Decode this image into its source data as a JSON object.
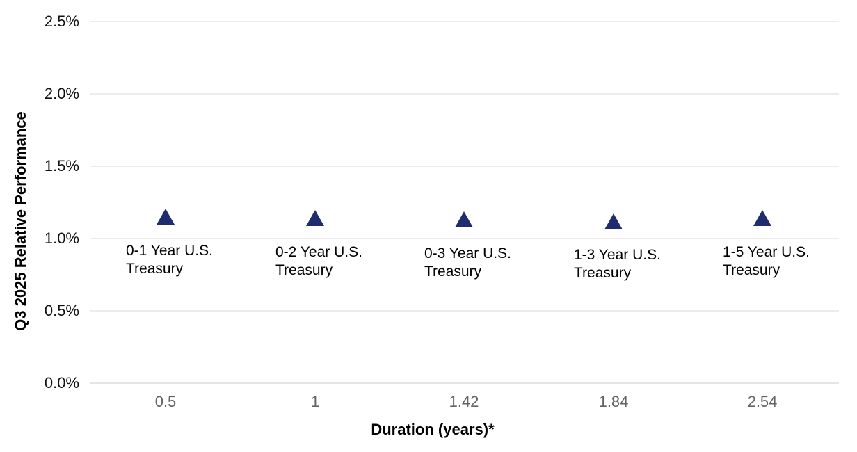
{
  "chart_data": {
    "type": "scatter",
    "title": "",
    "xlabel": "Duration (years)*",
    "ylabel": "Q3 2025 Relative Performance",
    "x_axis_type": "categorical",
    "x_tick_labels": [
      "0.5",
      "1",
      "1.42",
      "1.84",
      "2.54"
    ],
    "y_ticks": [
      {
        "label": "0.0%",
        "value": 0.0
      },
      {
        "label": "0.5%",
        "value": 0.5
      },
      {
        "label": "1.0%",
        "value": 1.0
      },
      {
        "label": "1.5%",
        "value": 1.5
      },
      {
        "label": "2.0%",
        "value": 2.0
      },
      {
        "label": "2.5%",
        "value": 2.5
      }
    ],
    "ylim": [
      0,
      2.5
    ],
    "grid": "horizontal",
    "legend": "none",
    "marker": "triangle-up",
    "colors": {
      "marker": "#1F2D6E",
      "gridline": "#ECECEC",
      "axis_line": "#E4E4E4",
      "x_tick_text": "#636363",
      "y_tick_text": "#111111",
      "label_text": "#000000"
    },
    "series": [
      {
        "name": "",
        "points": [
          {
            "duration": "0.5",
            "value_pct": 1.15,
            "label_lines": [
              "0-1 Year U.S.",
              "Treasury"
            ],
            "label": "0-1 Year U.S. Treasury"
          },
          {
            "duration": "1",
            "value_pct": 1.14,
            "label_lines": [
              "0-2 Year U.S.",
              "Treasury"
            ],
            "label": "0-2 Year U.S. Treasury"
          },
          {
            "duration": "1.42",
            "value_pct": 1.13,
            "label_lines": [
              "0-3 Year U.S.",
              "Treasury"
            ],
            "label": "0-3 Year U.S. Treasury"
          },
          {
            "duration": "1.84",
            "value_pct": 1.12,
            "label_lines": [
              "1-3 Year U.S.",
              "Treasury"
            ],
            "label": "1-3 Year U.S. Treasury"
          },
          {
            "duration": "2.54",
            "value_pct": 1.14,
            "label_lines": [
              "1-5 Year U.S.",
              "Treasury"
            ],
            "label": "1-5 Year U.S. Treasury"
          }
        ]
      }
    ]
  }
}
